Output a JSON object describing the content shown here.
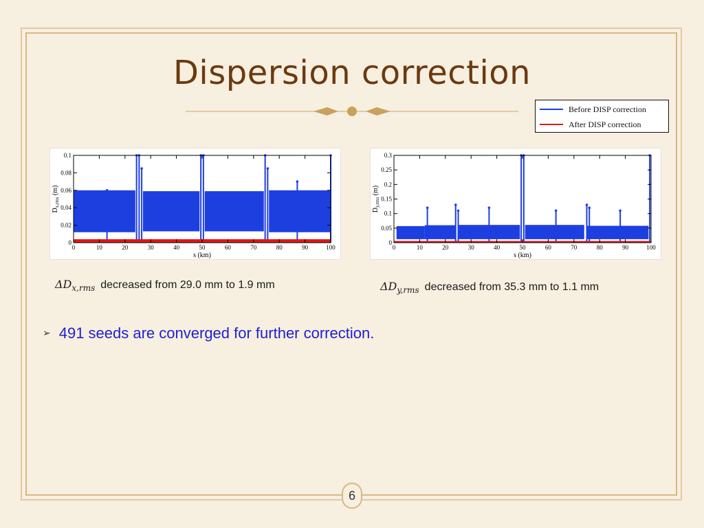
{
  "slide": {
    "title": "Dispersion correction",
    "page_number": "6",
    "bullet_text": "491 seeds are converged for further correction."
  },
  "legend": {
    "entries": [
      {
        "label": "Before DISP correction",
        "color": "#1e3fe0"
      },
      {
        "label": "After DISP correction",
        "color": "#e01818"
      }
    ]
  },
  "captions": [
    {
      "symbol": "ΔD",
      "subscript": "x,rms",
      "text": "decreased from 29.0 mm to 1.9 mm"
    },
    {
      "symbol": "ΔD",
      "subscript": "y,rms",
      "text": "decreased from 35.3 mm to 1.1 mm"
    }
  ],
  "chart_data": [
    {
      "type": "area",
      "xlabel": "s (km)",
      "ylabel_main": "D",
      "ylabel_sub": "x,rms",
      "ylabel_unit": " (m)",
      "xlim": [
        0,
        100
      ],
      "ylim": [
        0,
        0.1
      ],
      "xticks": [
        0,
        10,
        20,
        30,
        40,
        50,
        60,
        70,
        80,
        90,
        100
      ],
      "yticks": [
        0,
        0.02,
        0.04,
        0.06,
        0.08,
        0.1
      ],
      "ytick_labels": [
        "0",
        "0.02",
        "0.04",
        "0.06",
        "0.08",
        "0.1"
      ],
      "series": [
        {
          "name": "Before DISP correction",
          "color": "#1e3fe0",
          "bands": [
            {
              "x0": 0,
              "x1": 24,
              "low": 0.012,
              "high": 0.06
            },
            {
              "x0": 27,
              "x1": 49,
              "low": 0.013,
              "high": 0.059
            },
            {
              "x0": 51,
              "x1": 74,
              "low": 0.013,
              "high": 0.059
            },
            {
              "x0": 76,
              "x1": 100,
              "low": 0.012,
              "high": 0.06
            }
          ],
          "spikes": [
            {
              "x": 13,
              "y": 0.06
            },
            {
              "x": 24.5,
              "y": 0.1
            },
            {
              "x": 25.5,
              "y": 0.1
            },
            {
              "x": 26.5,
              "y": 0.085
            },
            {
              "x": 49.5,
              "y": 0.1
            },
            {
              "x": 50.5,
              "y": 0.1
            },
            {
              "x": 74.5,
              "y": 0.1
            },
            {
              "x": 75.5,
              "y": 0.085
            },
            {
              "x": 87,
              "y": 0.07
            },
            {
              "x": 100,
              "y": 0.1
            }
          ]
        },
        {
          "name": "After DISP correction",
          "color": "#e01818",
          "bands": [
            {
              "x0": 0,
              "x1": 100,
              "low": 0,
              "high": 0.004
            }
          ],
          "spikes": []
        }
      ]
    },
    {
      "type": "area",
      "xlabel": "s (km)",
      "ylabel_main": "D",
      "ylabel_sub": "y,rms",
      "ylabel_unit": " (m)",
      "xlim": [
        0,
        100
      ],
      "ylim": [
        0,
        0.3
      ],
      "xticks": [
        0,
        10,
        20,
        30,
        40,
        50,
        60,
        70,
        80,
        90,
        100
      ],
      "yticks": [
        0,
        0.05,
        0.1,
        0.15,
        0.2,
        0.25,
        0.3
      ],
      "ytick_labels": [
        "0",
        "0.05",
        "0.1",
        "0.15",
        "0.2",
        "0.25",
        "0.3"
      ],
      "series": [
        {
          "name": "Before DISP correction",
          "color": "#1e3fe0",
          "bands": [
            {
              "x0": 1,
              "x1": 12,
              "low": 0.012,
              "high": 0.057
            },
            {
              "x0": 12,
              "x1": 24,
              "low": 0.012,
              "high": 0.06
            },
            {
              "x0": 25,
              "x1": 49,
              "low": 0.012,
              "high": 0.061
            },
            {
              "x0": 51,
              "x1": 74,
              "low": 0.012,
              "high": 0.061
            },
            {
              "x0": 75,
              "x1": 99,
              "low": 0.012,
              "high": 0.058
            }
          ],
          "spikes": [
            {
              "x": 13,
              "y": 0.12
            },
            {
              "x": 24,
              "y": 0.13
            },
            {
              "x": 25,
              "y": 0.11
            },
            {
              "x": 37,
              "y": 0.12
            },
            {
              "x": 49.5,
              "y": 0.3
            },
            {
              "x": 50.5,
              "y": 0.3
            },
            {
              "x": 63,
              "y": 0.11
            },
            {
              "x": 75,
              "y": 0.13
            },
            {
              "x": 76,
              "y": 0.12
            },
            {
              "x": 88,
              "y": 0.11
            },
            {
              "x": 99.5,
              "y": 0.3
            }
          ]
        },
        {
          "name": "After DISP correction",
          "color": "#e01818",
          "bands": [
            {
              "x0": 0,
              "x1": 100,
              "low": 0,
              "high": 0.006
            }
          ],
          "spikes": []
        }
      ]
    }
  ]
}
